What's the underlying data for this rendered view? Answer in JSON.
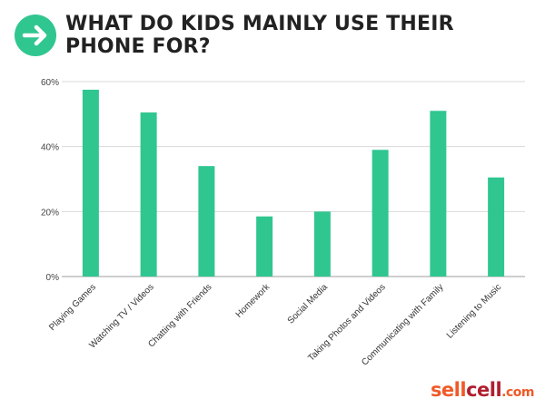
{
  "header": {
    "title": "WHAT DO KIDS MAINLY USE THEIR PHONE FOR?",
    "icon": "arrow-right-icon",
    "accent_color": "#30c690"
  },
  "brand": {
    "logo_sell": "sell",
    "logo_cell": "cell",
    "logo_tld": ".com",
    "colors": {
      "sell": "#f05a28",
      "cell": "#b01e2e"
    }
  },
  "chart_data": {
    "type": "bar",
    "title": "WHAT DO KIDS MAINLY USE THEIR PHONE FOR?",
    "xlabel": "",
    "ylabel": "",
    "categories": [
      "Playing Games",
      "Watching TV / Videos",
      "Chatting with Friends",
      "Homework",
      "Social Media",
      "Taking Photos and Videos",
      "Communicating with Family",
      "Listening to Music"
    ],
    "values": [
      57.5,
      50.5,
      34,
      18.5,
      20,
      39,
      51,
      30.5
    ],
    "ylim": [
      0,
      60
    ],
    "yticks": [
      0,
      20,
      40,
      60
    ],
    "ytick_labels": [
      "0%",
      "20%",
      "40%",
      "60%"
    ],
    "grid": true,
    "legend": "none",
    "bar_color": "#30c690"
  }
}
